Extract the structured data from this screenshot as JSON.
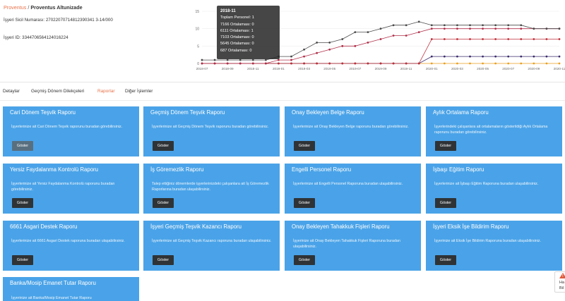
{
  "breadcrumb": {
    "root": "Proventus",
    "separator": " / ",
    "current": "Proventus Altunizade"
  },
  "sicil_label": "İşyeri Sicil Numarası: 27022070714812390341 3-14/000",
  "isyeri_id_label": "İşyeri ID: 3344706564124016224",
  "chart_data": {
    "type": "line",
    "x": [
      "2018-07",
      "2018-08",
      "2018-09",
      "2018-10",
      "2018-11",
      "2018-12",
      "2019-01",
      "2019-02",
      "2019-03",
      "2019-04",
      "2019-05",
      "2019-06",
      "2019-07",
      "2019-08",
      "2019-09",
      "2019-10",
      "2019-11",
      "2019-12",
      "2020-01",
      "2020-02",
      "2020-03",
      "2020-04",
      "2020-05",
      "2020-06",
      "2020-07",
      "2020-08",
      "2020-09",
      "2020-10",
      "2020-11"
    ],
    "x_tick_labels": [
      "2018-07",
      "2018-09",
      "2018-11",
      "2019-01",
      "2019-03",
      "2019-05",
      "2019-07",
      "2019-09",
      "2019-11",
      "2020-01",
      "2020-03",
      "2020-05",
      "2020-07",
      "2020-09",
      "2020-11"
    ],
    "ylim": [
      0,
      15
    ],
    "y_ticks": [
      "15",
      "10",
      "5",
      "0"
    ],
    "series": [
      {
        "color": "#4a4a4a",
        "values": [
          1,
          1,
          1,
          1,
          1,
          1,
          2,
          2,
          4,
          6,
          6,
          7,
          9,
          9,
          10,
          11,
          11,
          12,
          11,
          11,
          11,
          11,
          11,
          11,
          11,
          11,
          10,
          10,
          10
        ]
      },
      {
        "color": "#b0304a",
        "values": [
          0,
          0,
          0,
          0,
          0,
          0,
          1,
          1,
          2,
          3,
          4,
          5,
          5,
          6,
          7,
          8,
          8,
          9,
          10,
          10,
          10,
          10,
          10,
          10,
          10,
          10,
          10,
          10,
          10
        ]
      },
      {
        "color": "#c0303a",
        "values": [
          0,
          0,
          0,
          0,
          0,
          0,
          0,
          0,
          0,
          0,
          0,
          0,
          0,
          0,
          0,
          0,
          0,
          0,
          7,
          7,
          7,
          7,
          7,
          7,
          7,
          7,
          7,
          7,
          7
        ]
      },
      {
        "color": "#3a2a6a",
        "values": [
          0,
          0,
          0,
          0,
          0,
          0,
          0,
          0,
          0,
          0,
          0,
          0,
          0,
          0,
          0,
          0,
          0,
          0,
          2,
          2,
          2,
          2,
          2,
          2,
          2,
          2,
          2,
          2,
          2
        ]
      },
      {
        "color": "#e8a020",
        "values": [
          0,
          0,
          0,
          0,
          0,
          0,
          0,
          0,
          0,
          0,
          0,
          0,
          0,
          0,
          0,
          0,
          0,
          0,
          0,
          0,
          0,
          0,
          0,
          0,
          0,
          0,
          0,
          0,
          0
        ]
      }
    ],
    "tooltip": {
      "title": "2018-11",
      "lines": [
        "Toplam Personel: 1",
        "7166 Ortalaması: 0",
        "6111 Ortalaması: 1",
        "7103 Ortalaması: 0",
        "5645 Ortalaması: 0",
        "687 Ortalaması: 0"
      ]
    }
  },
  "tabs": [
    {
      "label": "Detaylar",
      "active": false
    },
    {
      "label": "Geçmiş Dönem Dilekçeleri",
      "active": false
    },
    {
      "label": "Raporlar",
      "active": true
    },
    {
      "label": "Diğer İşlemler",
      "active": false
    }
  ],
  "cards": [
    {
      "title": "Cari Dönem Teşvik Raporu",
      "desc": "İşyerlerinize ait Cari Dönem Teşvik raporunu buradan görebilirsiniz.",
      "button": "Göster"
    },
    {
      "title": "Geçmiş Dönem Teşvik Raporu",
      "desc": "İşyerlerinize ait Geçmiş Dönem Teşvik raporunu buradan görebilirsiniz.",
      "button": "Göster"
    },
    {
      "title": "Onay Bekleyen Belge Raporu",
      "desc": "İşyerlerinize ait Onay Bekleyen Belge raporunu buradan görebilirsiniz.",
      "button": "Göster"
    },
    {
      "title": "Aylık Ortalama Raporu",
      "desc": "İşyerlerindeki çalışanlara ait ortalamaların gösterildiği Aylık Ortalama raporunu buradan görebilirsiniz.",
      "button": "Göster"
    },
    {
      "title": "Yersiz Faydalanma Kontrolü Raporu",
      "desc": "İşyerlerinize ait Yersiz Faydalanma Kontrolü raporunu buradan görebilirsiniz.",
      "button": "Göster"
    },
    {
      "title": "İş Göremezlik Raporu",
      "desc": "Talep ettiğiniz dönemlerde işyerlerinizdeki çalışanlara ait İş Göremezlik Raporlarına buradan ulaşabilirsiniz.",
      "button": "Göster"
    },
    {
      "title": "Engelli Personel Raporu",
      "desc": "İşyerlerinize ait Engelli Personel Raporuna buradan ulaşabilirsiniz.",
      "button": "Göster"
    },
    {
      "title": "İşbaşı Eğitim Raporu",
      "desc": "İşyerlerinize ait İşbaşı Eğitim Raporuna buradan ulaşabilirsiniz.",
      "button": "Göster"
    },
    {
      "title": "6661 Asgari Destek Raporu",
      "desc": "İşyerlerinize ait 6661 Asgari Destek raporuna buradan ulaşabilirsiniz.",
      "button": "Göster"
    },
    {
      "title": "İşyeri Geçmiş Teşvik Kazancı Raporu",
      "desc": "İşyerlerinize ait Geçmiş Teşvik Kazancı raporuna buradan ulaşabilirsiniz.",
      "button": "Göster"
    },
    {
      "title": "Onay Bekleyen Tahakkuk Fişleri Raporu",
      "desc": "İşyerinize ait Onay Bekleyen Tahakkuk Fişleri Raporuna buradan ulaşabilirsiniz.",
      "button": "Göster"
    },
    {
      "title": "İşyeri Eksik İşe Bildirim Raporu",
      "desc": "İşyerinize ait Eksik İşe Bildirim Raporuna buradan ulaşabilirsiniz.",
      "button": "Göster"
    },
    {
      "title": "Banka/Mosip Emanet Tutar Raporu",
      "desc": "İşyerinize ait Banka/Mosip Emanet Tutar Raporu",
      "button": ""
    }
  ],
  "help_widget": {
    "line1": "Ha",
    "line2": "Bil"
  }
}
